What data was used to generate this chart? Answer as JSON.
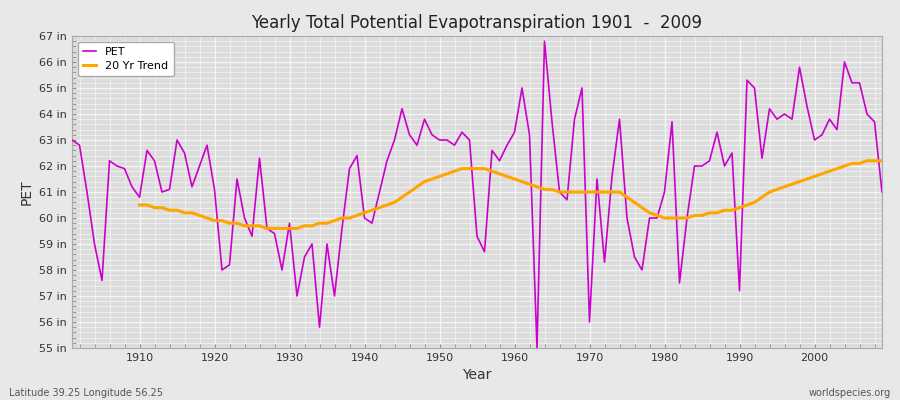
{
  "title": "Yearly Total Potential Evapotranspiration 1901  -  2009",
  "xlabel": "Year",
  "ylabel": "PET",
  "footnote_left": "Latitude 39.25 Longitude 56.25",
  "footnote_right": "worldspecies.org",
  "pet_color": "#cc00cc",
  "trend_color": "#FFA500",
  "background_color": "#e8e8e8",
  "plot_bg_color": "#dcdcdc",
  "grid_color": "#f5f5f5",
  "ylim": [
    55,
    67
  ],
  "years": [
    1901,
    1902,
    1903,
    1904,
    1905,
    1906,
    1907,
    1908,
    1909,
    1910,
    1911,
    1912,
    1913,
    1914,
    1915,
    1916,
    1917,
    1918,
    1919,
    1920,
    1921,
    1922,
    1923,
    1924,
    1925,
    1926,
    1927,
    1928,
    1929,
    1930,
    1931,
    1932,
    1933,
    1934,
    1935,
    1936,
    1937,
    1938,
    1939,
    1940,
    1941,
    1942,
    1943,
    1944,
    1945,
    1946,
    1947,
    1948,
    1949,
    1950,
    1951,
    1952,
    1953,
    1954,
    1955,
    1956,
    1957,
    1958,
    1959,
    1960,
    1961,
    1962,
    1963,
    1964,
    1965,
    1966,
    1967,
    1968,
    1969,
    1970,
    1971,
    1972,
    1973,
    1974,
    1975,
    1976,
    1977,
    1978,
    1979,
    1980,
    1981,
    1982,
    1983,
    1984,
    1985,
    1986,
    1987,
    1988,
    1989,
    1990,
    1991,
    1992,
    1993,
    1994,
    1995,
    1996,
    1997,
    1998,
    1999,
    2000,
    2001,
    2002,
    2003,
    2004,
    2005,
    2006,
    2007,
    2008,
    2009
  ],
  "pet_values": [
    63.0,
    62.8,
    61.0,
    59.0,
    57.6,
    62.2,
    62.0,
    61.9,
    61.2,
    60.8,
    62.6,
    62.2,
    61.0,
    61.1,
    63.0,
    62.5,
    61.2,
    62.0,
    62.8,
    61.1,
    58.0,
    58.2,
    61.5,
    60.0,
    59.3,
    62.3,
    59.6,
    59.4,
    58.0,
    59.8,
    57.0,
    58.5,
    59.0,
    55.8,
    59.0,
    57.0,
    59.6,
    61.9,
    62.4,
    60.0,
    59.8,
    61.0,
    62.2,
    63.0,
    64.2,
    63.2,
    62.8,
    63.8,
    63.2,
    63.0,
    63.0,
    62.8,
    63.3,
    63.0,
    59.3,
    58.7,
    62.6,
    62.2,
    62.8,
    63.3,
    65.0,
    63.2,
    55.0,
    66.8,
    63.7,
    61.0,
    60.7,
    63.8,
    65.0,
    56.0,
    61.5,
    58.3,
    61.6,
    63.8,
    60.0,
    58.5,
    58.0,
    60.0,
    60.0,
    61.0,
    63.7,
    57.5,
    60.0,
    62.0,
    62.0,
    62.2,
    63.3,
    62.0,
    62.5,
    57.2,
    65.3,
    65.0,
    62.3,
    64.2,
    63.8,
    64.0,
    63.8,
    65.8,
    64.3,
    63.0,
    63.2,
    63.8,
    63.4,
    66.0,
    65.2,
    65.2,
    64.0,
    63.7,
    61.0
  ],
  "trend_years": [
    1910,
    1911,
    1912,
    1913,
    1914,
    1915,
    1916,
    1917,
    1918,
    1919,
    1920,
    1921,
    1922,
    1923,
    1924,
    1925,
    1926,
    1927,
    1928,
    1929,
    1930,
    1931,
    1932,
    1933,
    1934,
    1935,
    1936,
    1937,
    1938,
    1939,
    1940,
    1941,
    1942,
    1943,
    1944,
    1945,
    1946,
    1947,
    1948,
    1949,
    1950,
    1951,
    1952,
    1953,
    1954,
    1955,
    1956,
    1957,
    1958,
    1959,
    1960,
    1961,
    1962,
    1963,
    1964,
    1965,
    1966,
    1967,
    1968,
    1969,
    1970,
    1971,
    1972,
    1973,
    1974,
    1975,
    1976,
    1977,
    1978,
    1979,
    1980,
    1981,
    1982,
    1983,
    1984,
    1985,
    1986,
    1987,
    1988,
    1989,
    1990,
    1991,
    1992,
    1993,
    1994,
    1995,
    1996,
    1997,
    1998,
    1999,
    2000,
    2001,
    2002,
    2003,
    2004,
    2005,
    2006,
    2007,
    2008,
    2009
  ],
  "trend_values": [
    60.5,
    60.5,
    60.4,
    60.4,
    60.3,
    60.3,
    60.2,
    60.2,
    60.1,
    60.0,
    59.9,
    59.9,
    59.8,
    59.8,
    59.7,
    59.7,
    59.7,
    59.6,
    59.6,
    59.6,
    59.6,
    59.6,
    59.7,
    59.7,
    59.8,
    59.8,
    59.9,
    60.0,
    60.0,
    60.1,
    60.2,
    60.3,
    60.4,
    60.5,
    60.6,
    60.8,
    61.0,
    61.2,
    61.4,
    61.5,
    61.6,
    61.7,
    61.8,
    61.9,
    61.9,
    61.9,
    61.9,
    61.8,
    61.7,
    61.6,
    61.5,
    61.4,
    61.3,
    61.2,
    61.1,
    61.1,
    61.0,
    61.0,
    61.0,
    61.0,
    61.0,
    61.0,
    61.0,
    61.0,
    61.0,
    60.8,
    60.6,
    60.4,
    60.2,
    60.1,
    60.0,
    60.0,
    60.0,
    60.0,
    60.1,
    60.1,
    60.2,
    60.2,
    60.3,
    60.3,
    60.4,
    60.5,
    60.6,
    60.8,
    61.0,
    61.1,
    61.2,
    61.3,
    61.4,
    61.5,
    61.6,
    61.7,
    61.8,
    61.9,
    62.0,
    62.1,
    62.1,
    62.2,
    62.2,
    62.2
  ]
}
